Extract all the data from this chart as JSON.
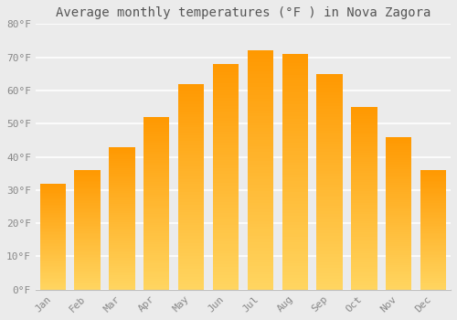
{
  "title": "Average monthly temperatures (°F ) in Nova Zagora",
  "months": [
    "Jan",
    "Feb",
    "Mar",
    "Apr",
    "May",
    "Jun",
    "Jul",
    "Aug",
    "Sep",
    "Oct",
    "Nov",
    "Dec"
  ],
  "values": [
    32,
    36,
    43,
    52,
    62,
    68,
    72,
    71,
    65,
    55,
    46,
    36
  ],
  "bar_color_main": "#FFA726",
  "bar_color_light": "#FFD54F",
  "ylim": [
    0,
    80
  ],
  "yticks": [
    0,
    10,
    20,
    30,
    40,
    50,
    60,
    70,
    80
  ],
  "ytick_labels": [
    "0°F",
    "10°F",
    "20°F",
    "30°F",
    "40°F",
    "50°F",
    "60°F",
    "70°F",
    "80°F"
  ],
  "background_color": "#EBEBEB",
  "plot_bg_color": "#EBEBEB",
  "grid_color": "#FFFFFF",
  "title_fontsize": 10,
  "tick_fontsize": 8,
  "title_color": "#555555",
  "tick_color": "#888888",
  "bar_width": 0.75
}
